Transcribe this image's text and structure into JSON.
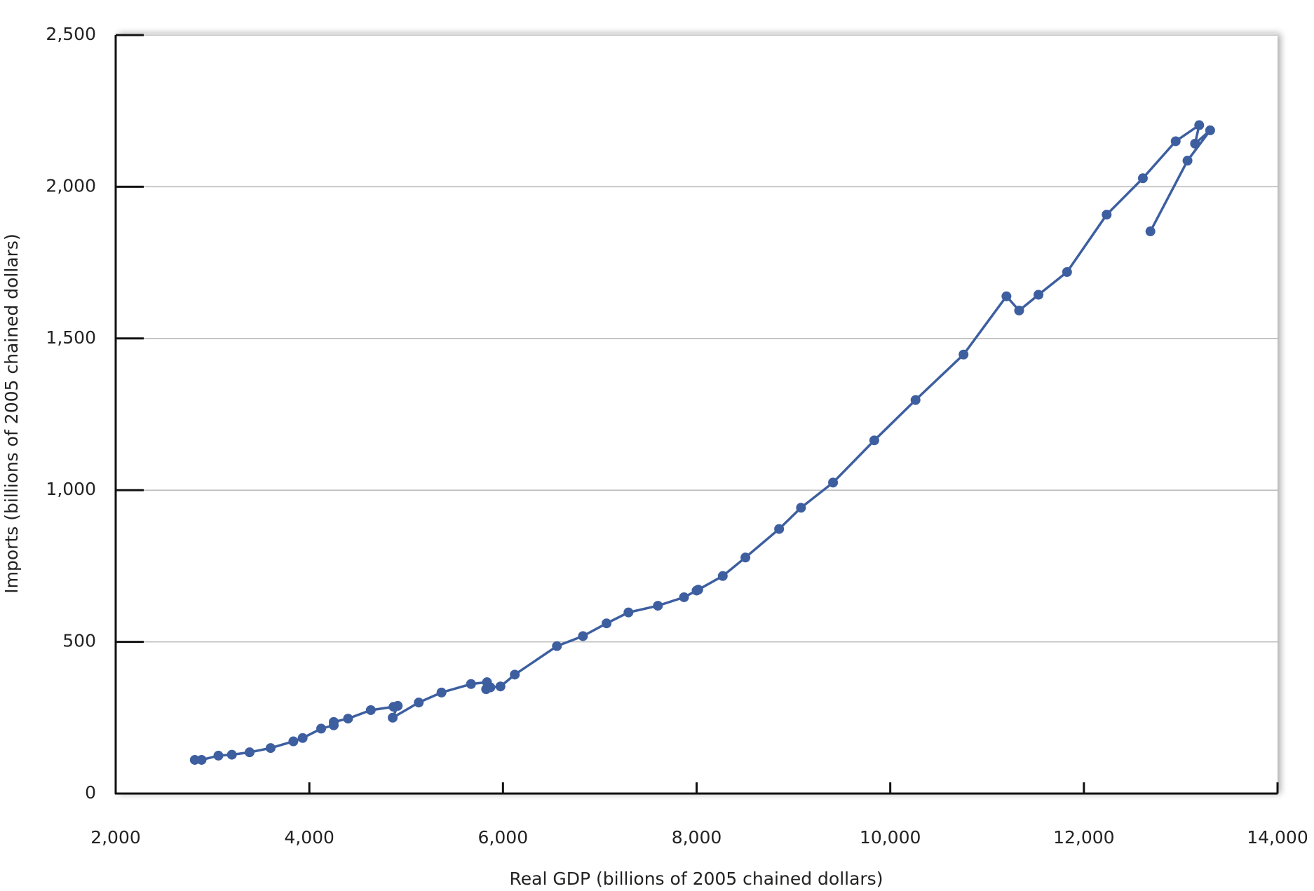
{
  "chart_data": {
    "type": "line",
    "x_label": "Real GDP (billions of 2005 chained dollars)",
    "y_label": "Imports (billions of 2005 chained dollars)",
    "series": [
      {
        "name": "Imports",
        "color": "#3d5fa0",
        "x": [
          2817,
          2887,
          3061,
          3200,
          3383,
          3600,
          3835,
          3931,
          4122,
          4252,
          4252,
          4400,
          4635,
          4870,
          4913,
          4861,
          5130,
          5365,
          5670,
          5835,
          5826,
          5870,
          5974,
          6122,
          6557,
          6826,
          7070,
          7296,
          7600,
          7870,
          8000,
          8017,
          8270,
          8504,
          8852,
          9078,
          9409,
          9835,
          10261,
          10757,
          11200,
          11331,
          11531,
          11826,
          12235,
          12609,
          12948,
          13191,
          13148,
          13304,
          13070,
          12687
        ],
        "values": [
          111,
          111,
          125,
          128,
          136,
          150,
          172,
          183,
          214,
          225,
          236,
          247,
          275,
          286,
          289,
          250,
          300,
          333,
          361,
          367,
          344,
          350,
          353,
          392,
          486,
          519,
          561,
          597,
          619,
          647,
          669,
          672,
          717,
          778,
          872,
          942,
          1025,
          1164,
          1297,
          1447,
          1639,
          1592,
          1644,
          1719,
          1908,
          2028,
          2150,
          2203,
          2142,
          2186,
          2086,
          1853
        ]
      }
    ],
    "xlim": [
      2000,
      14000
    ],
    "xticks": [
      {
        "value": 2000,
        "label": "2,000"
      },
      {
        "value": 4000,
        "label": "4,000"
      },
      {
        "value": 6000,
        "label": "6,000"
      },
      {
        "value": 8000,
        "label": "8,000"
      },
      {
        "value": 10000,
        "label": "10,000"
      },
      {
        "value": 12000,
        "label": "12,000"
      },
      {
        "value": 14000,
        "label": "14,000"
      }
    ],
    "ylim": [
      0,
      2500
    ],
    "yticks": [
      0,
      500,
      {
        "value": 1000,
        "label": "1,000"
      },
      {
        "value": 1500,
        "label": "1,500"
      },
      {
        "value": 2000,
        "label": "2,000"
      },
      {
        "value": 2500,
        "label": "2,500"
      }
    ],
    "grid": true
  }
}
